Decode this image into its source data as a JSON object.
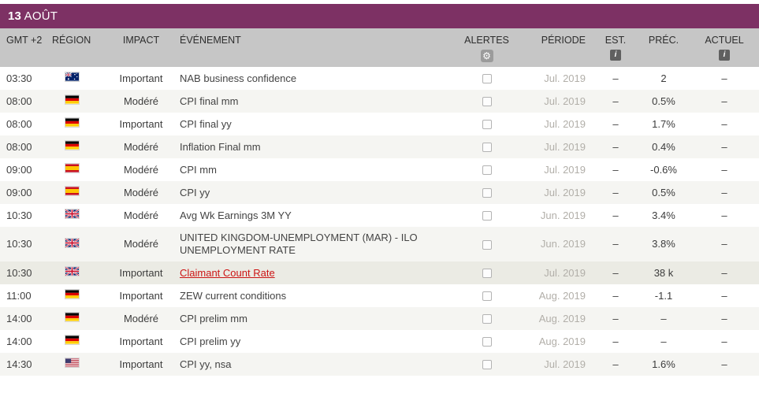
{
  "header": {
    "day": "13",
    "month": "AOÛT"
  },
  "columns": {
    "time": "GMT +2",
    "region": "RÉGION",
    "impact": "IMPACT",
    "event": "ÉVÉNEMENT",
    "alerts": "ALERTES",
    "period": "PÉRIODE",
    "est": "EST.",
    "prev": "PRÉC.",
    "actual": "ACTUEL"
  },
  "icons": {
    "alerts_settings": "gear-icon",
    "est_info": "info-icon",
    "actual_info": "info-icon",
    "gear_glyph": "⚙",
    "info_glyph": "i"
  },
  "colors": {
    "title_bar": "#7D3164",
    "header_bg": "#C6C6C6",
    "row_alt": "#F5F5F2",
    "row_highlight": "#EBEBE4",
    "link": "#CC1414",
    "period_text": "#B2AFA9"
  },
  "rows": [
    {
      "time": "03:30",
      "region": "australia",
      "impact": "Important",
      "event": "NAB business confidence",
      "period": "Jul. 2019",
      "est": "–",
      "prev": "2",
      "actual": "–"
    },
    {
      "time": "08:00",
      "region": "germany",
      "impact": "Modéré",
      "event": "CPI final mm",
      "period": "Jul. 2019",
      "est": "–",
      "prev": "0.5%",
      "actual": "–"
    },
    {
      "time": "08:00",
      "region": "germany",
      "impact": "Important",
      "event": "CPI final yy",
      "period": "Jul. 2019",
      "est": "–",
      "prev": "1.7%",
      "actual": "–"
    },
    {
      "time": "08:00",
      "region": "germany",
      "impact": "Modéré",
      "event": "Inflation Final mm",
      "period": "Jul. 2019",
      "est": "–",
      "prev": "0.4%",
      "actual": "–"
    },
    {
      "time": "09:00",
      "region": "spain",
      "impact": "Modéré",
      "event": "CPI mm",
      "period": "Jul. 2019",
      "est": "–",
      "prev": "-0.6%",
      "actual": "–"
    },
    {
      "time": "09:00",
      "region": "spain",
      "impact": "Modéré",
      "event": "CPI yy",
      "period": "Jul. 2019",
      "est": "–",
      "prev": "0.5%",
      "actual": "–"
    },
    {
      "time": "10:30",
      "region": "uk",
      "impact": "Modéré",
      "event": "Avg Wk Earnings 3M YY",
      "period": "Jun. 2019",
      "est": "–",
      "prev": "3.4%",
      "actual": "–"
    },
    {
      "time": "10:30",
      "region": "uk",
      "impact": "Modéré",
      "event": "UNITED KINGDOM-UNEMPLOYMENT (MAR) - ILO UNEMPLOYMENT RATE",
      "period": "Jun. 2019",
      "est": "–",
      "prev": "3.8%",
      "actual": "–"
    },
    {
      "time": "10:30",
      "region": "uk",
      "impact": "Important",
      "event": "Claimant Count Rate",
      "link": true,
      "highlighted": true,
      "period": "Jul. 2019",
      "est": "–",
      "prev": "38 k",
      "actual": "–"
    },
    {
      "time": "11:00",
      "region": "germany",
      "impact": "Important",
      "event": "ZEW current conditions",
      "period": "Aug. 2019",
      "est": "–",
      "prev": "-1.1",
      "actual": "–"
    },
    {
      "time": "14:00",
      "region": "germany",
      "impact": "Modéré",
      "event": "CPI prelim mm",
      "period": "Aug. 2019",
      "est": "–",
      "prev": "–",
      "actual": "–"
    },
    {
      "time": "14:00",
      "region": "germany",
      "impact": "Important",
      "event": "CPI prelim yy",
      "period": "Aug. 2019",
      "est": "–",
      "prev": "–",
      "actual": "–"
    },
    {
      "time": "14:30",
      "region": "usa",
      "impact": "Important",
      "event": "CPI yy, nsa",
      "period": "Jul. 2019",
      "est": "–",
      "prev": "1.6%",
      "actual": "–"
    }
  ]
}
